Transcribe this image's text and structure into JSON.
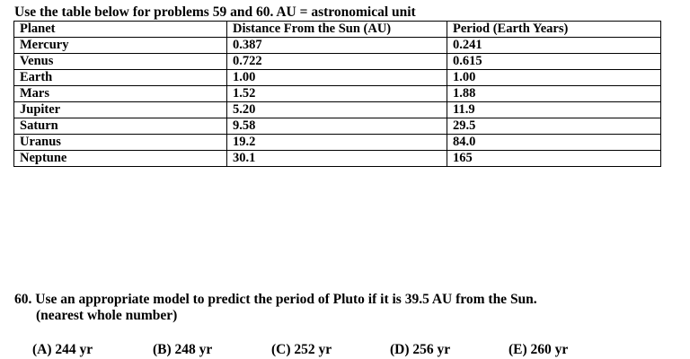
{
  "intro": "Use the table below for problems 59 and 60.  AU = astronomical unit",
  "table": {
    "headers": [
      "Planet",
      "Distance From the Sun (AU)",
      "Period (Earth Years)"
    ],
    "rows": [
      [
        "Mercury",
        "0.387",
        "0.241"
      ],
      [
        "Venus",
        "0.722",
        "0.615"
      ],
      [
        "Earth",
        "1.00",
        "1.00"
      ],
      [
        "Mars",
        "1.52",
        "1.88"
      ],
      [
        "Jupiter",
        "5.20",
        "11.9"
      ],
      [
        "Saturn",
        "9.58",
        "29.5"
      ],
      [
        "Uranus",
        "19.2",
        "84.0"
      ],
      [
        "Neptune",
        "30.1",
        "165"
      ]
    ]
  },
  "question": {
    "line1": "60.  Use an appropriate model to predict the period of Pluto if it is 39.5 AU from the Sun.",
    "line2": "(nearest whole number)"
  },
  "choices": [
    "(A)  244 yr",
    "(B)  248 yr",
    "(C)  252 yr",
    "(D)  256 yr",
    "(E)  260 yr"
  ]
}
